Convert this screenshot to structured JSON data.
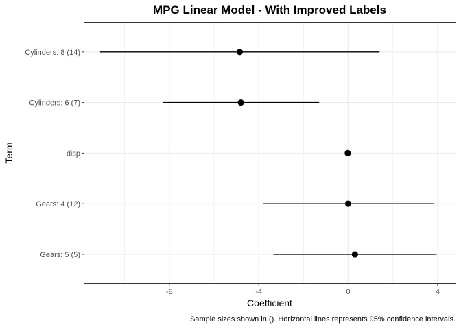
{
  "chart_data": {
    "type": "scatter",
    "title": "MPG Linear Model - With Improved Labels",
    "xlabel": "Coefficient",
    "ylabel": "Term",
    "caption": "Sample sizes shown in (). Horizontal lines represents 95% confidence intervals.",
    "xlim": [
      -11.8,
      4.8
    ],
    "x_ticks": [
      -8,
      -4,
      0,
      4
    ],
    "x_tick_labels": [
      "-8",
      "-4",
      "0",
      "4"
    ],
    "reference_line_x": 0,
    "grid": true,
    "legend": "none",
    "terms": [
      {
        "label": "Cylinders: 8 (14)",
        "estimate": -4.85,
        "ci_low": -11.1,
        "ci_high": 1.4
      },
      {
        "label": "Cylinders: 6 (7)",
        "estimate": -4.8,
        "ci_low": -8.3,
        "ci_high": -1.3
      },
      {
        "label": "disp",
        "estimate": -0.02,
        "ci_low": -0.05,
        "ci_high": 0.01
      },
      {
        "label": "Gears: 4 (12)",
        "estimate": 0.0,
        "ci_low": -3.8,
        "ci_high": 3.85
      },
      {
        "label": "Gears: 5 (5)",
        "estimate": 0.3,
        "ci_low": -3.35,
        "ci_high": 3.95
      }
    ],
    "colors": {
      "point": "#000000",
      "line": "#000000",
      "reference_line": "#b3b3b3",
      "grid": "#ebebeb",
      "panel_border": "#333333"
    }
  }
}
